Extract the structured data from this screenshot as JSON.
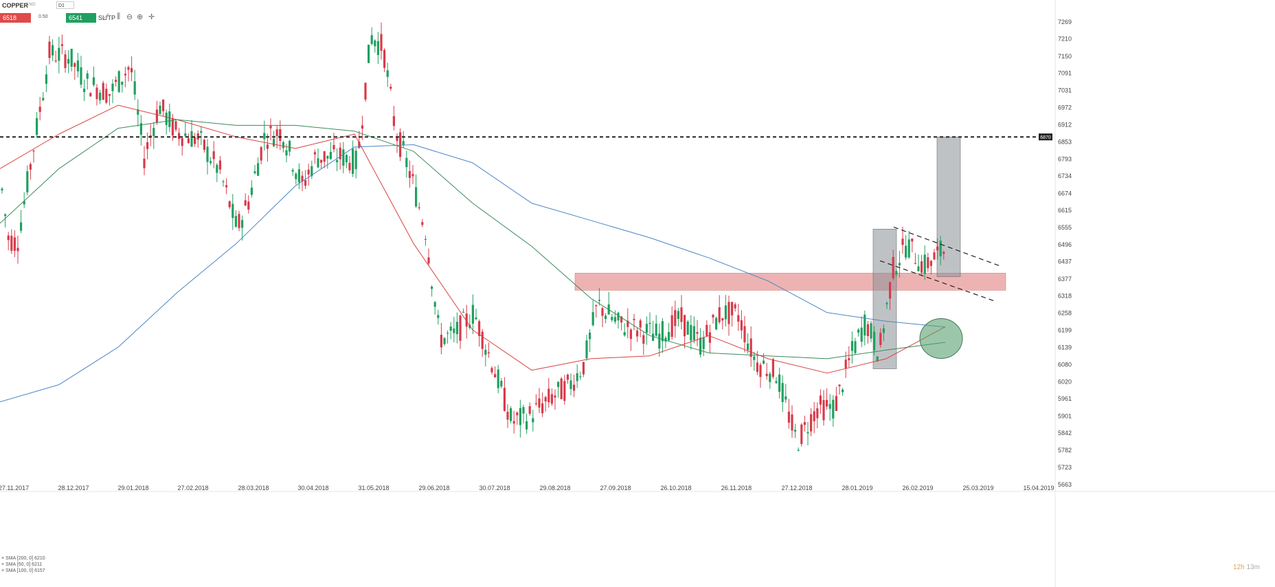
{
  "toolbar": {
    "symbol": "COPPER",
    "symbol_meta": "CMD",
    "timeframe": "D1",
    "sell_price": "6518",
    "spread": "0.50",
    "buy_price": "6541",
    "sltp_label": "SL/TP",
    "icons": [
      "line-chart-icon",
      "bar-type-icon",
      "zoom-out-icon",
      "zoom-in-icon",
      "crosshair-icon"
    ]
  },
  "legend": [
    {
      "label": "SMA [200, 0] 6210",
      "color": "#4a86c5"
    },
    {
      "label": "SMA [50, 0] 6211",
      "color": "#d94040"
    },
    {
      "label": "SMA [100, 0] 6157",
      "color": "#3a8a5a"
    }
  ],
  "timer": {
    "hours": "12h",
    "minutes": "13m"
  },
  "colors": {
    "up": "#20a060",
    "down": "#d83a4a",
    "sma200": "#4a86c5",
    "sma50": "#d94040",
    "sma100": "#3a8a5a",
    "zone": "#e8a0a0",
    "box": "#8a8f96",
    "circle": "#5aa070"
  },
  "chart_data": {
    "type": "candlestick",
    "y_ticks": [
      7269,
      7210,
      7150,
      7091,
      7031,
      6972,
      6912,
      6853,
      6793,
      6734,
      6674,
      6615,
      6555,
      6496,
      6437,
      6377,
      6318,
      6258,
      6199,
      6139,
      6080,
      6020,
      5961,
      5901,
      5842,
      5782,
      5723,
      5663
    ],
    "x_labels": [
      "27.11.2017",
      "28.12.2017",
      "29.01.2018",
      "27.02.2018",
      "28.03.2018",
      "30.04.2018",
      "31.05.2018",
      "29.06.2018",
      "30.07.2018",
      "29.08.2018",
      "27.09.2018",
      "26.10.2018",
      "26.11.2018",
      "27.12.2018",
      "28.01.2019",
      "26.02.2019",
      "25.03.2019",
      "15.04.2019"
    ],
    "ylim": [
      5663,
      7269
    ],
    "level_line": {
      "value": 6870,
      "label": "6870",
      "style": "dashed"
    },
    "resistance_zone": {
      "from": 6340,
      "to": 6390,
      "start": "27.09.2018",
      "end": "25.03.2019"
    },
    "annotations": [
      {
        "kind": "projection-box",
        "start": "28.01.2019",
        "end": "26.02.2019",
        "from": 6065,
        "to": 6550
      },
      {
        "kind": "projection-box",
        "start": "26.02.2019",
        "end": "25.03.2019",
        "from": 6385,
        "to": 6870
      },
      {
        "kind": "channel-upper",
        "from": [
          6557,
          26.02
        ],
        "to": [
          6420,
          25.03
        ]
      },
      {
        "kind": "channel-lower",
        "from": [
          6440,
          26.02
        ],
        "to": [
          6300,
          25.03
        ]
      },
      {
        "kind": "crossover-circle",
        "center_value": 6170
      }
    ],
    "series": [
      {
        "name": "SMA [200, 0] 6210",
        "values": [
          5950,
          6010,
          6140,
          6330,
          6500,
          6700,
          6835,
          6843,
          6780,
          6640,
          6580,
          6520,
          6450,
          6370,
          6260,
          6230,
          6210
        ]
      },
      {
        "name": "SMA [50, 0] 6211",
        "values": [
          6760,
          6880,
          6980,
          6930,
          6870,
          6830,
          6880,
          6500,
          6200,
          6060,
          6100,
          6110,
          6180,
          6100,
          6050,
          6100,
          6211
        ]
      },
      {
        "name": "SMA [100, 0] 6157",
        "values": [
          6570,
          6760,
          6900,
          6930,
          6910,
          6910,
          6890,
          6820,
          6640,
          6490,
          6310,
          6180,
          6120,
          6110,
          6100,
          6130,
          6157
        ]
      }
    ]
  }
}
